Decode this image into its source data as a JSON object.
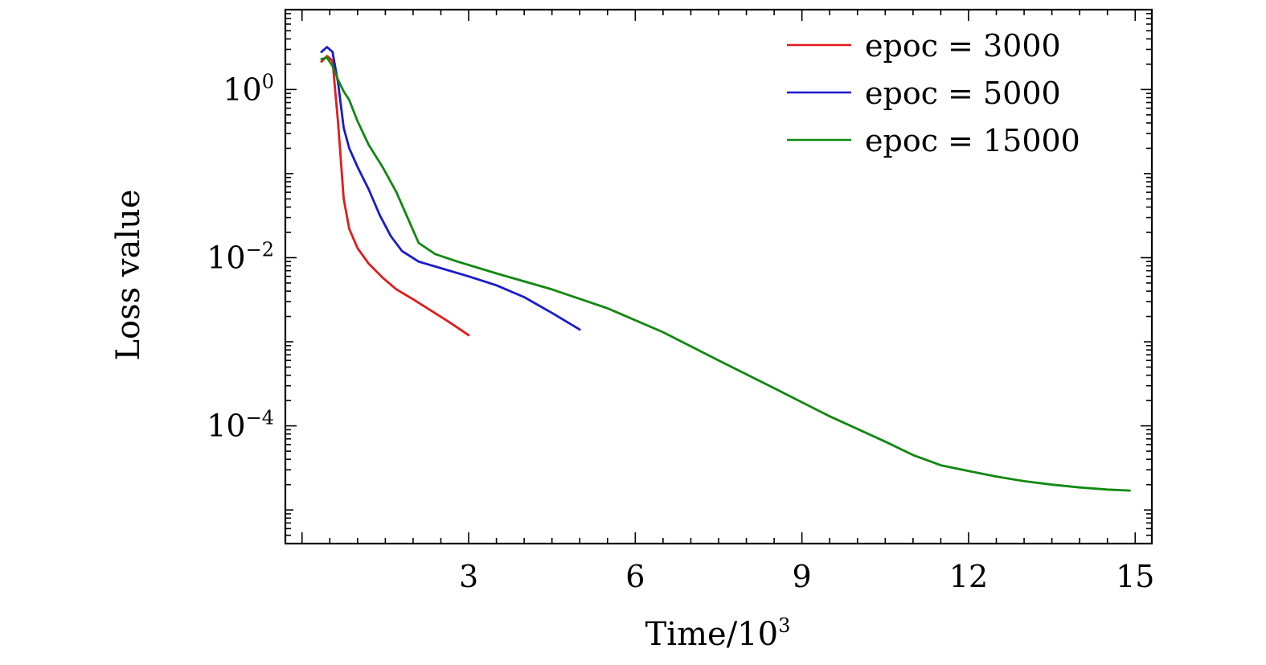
{
  "chart_data": {
    "type": "line",
    "xlabel_base": "Time/10",
    "xlabel_sup": "3",
    "ylabel": "Loss value",
    "xlim": [
      -0.3,
      15.3
    ],
    "x_ticks": [
      {
        "value": 3,
        "label": "3"
      },
      {
        "value": 6,
        "label": "6"
      },
      {
        "value": 9,
        "label": "9"
      },
      {
        "value": 12,
        "label": "12"
      },
      {
        "value": 15,
        "label": "15"
      }
    ],
    "y_scale": "log",
    "ylim_log10": [
      -5.4,
      0.95
    ],
    "y_ticks": [
      {
        "log10": 0,
        "base": "10",
        "exp": "0"
      },
      {
        "log10": -2,
        "base": "10",
        "exp": "−2"
      },
      {
        "log10": -4,
        "base": "10",
        "exp": "−4"
      }
    ],
    "legend_position": "top-right",
    "series": [
      {
        "name": "epoc = 3000",
        "color": "#e41a1c",
        "points": [
          [
            0.35,
            2.15
          ],
          [
            0.45,
            2.5
          ],
          [
            0.55,
            2.2
          ],
          [
            0.65,
            0.4
          ],
          [
            0.75,
            0.05
          ],
          [
            0.85,
            0.022
          ],
          [
            1.0,
            0.013
          ],
          [
            1.2,
            0.0085
          ],
          [
            1.45,
            0.0058
          ],
          [
            1.7,
            0.0042
          ],
          [
            2.0,
            0.0032
          ],
          [
            2.3,
            0.0024
          ],
          [
            2.6,
            0.0018
          ],
          [
            2.85,
            0.0014
          ],
          [
            3.0,
            0.0012
          ]
        ]
      },
      {
        "name": "epoc = 5000",
        "color": "#1a1acd",
        "points": [
          [
            0.35,
            2.8
          ],
          [
            0.45,
            3.2
          ],
          [
            0.55,
            2.8
          ],
          [
            0.65,
            1.2
          ],
          [
            0.75,
            0.35
          ],
          [
            0.85,
            0.2
          ],
          [
            1.0,
            0.12
          ],
          [
            1.2,
            0.065
          ],
          [
            1.4,
            0.032
          ],
          [
            1.6,
            0.018
          ],
          [
            1.8,
            0.012
          ],
          [
            2.1,
            0.009
          ],
          [
            2.5,
            0.0075
          ],
          [
            3.0,
            0.006
          ],
          [
            3.5,
            0.0047
          ],
          [
            4.0,
            0.0034
          ],
          [
            4.5,
            0.0022
          ],
          [
            5.0,
            0.0014
          ]
        ]
      },
      {
        "name": "epoc = 15000",
        "color": "#118811",
        "points": [
          [
            0.35,
            2.3
          ],
          [
            0.45,
            2.4
          ],
          [
            0.55,
            1.9
          ],
          [
            0.65,
            1.3
          ],
          [
            0.75,
            0.95
          ],
          [
            0.85,
            0.75
          ],
          [
            1.0,
            0.42
          ],
          [
            1.2,
            0.22
          ],
          [
            1.45,
            0.12
          ],
          [
            1.7,
            0.06
          ],
          [
            1.9,
            0.03
          ],
          [
            2.1,
            0.015
          ],
          [
            2.4,
            0.011
          ],
          [
            2.8,
            0.009
          ],
          [
            3.5,
            0.0065
          ],
          [
            4.5,
            0.0042
          ],
          [
            5.5,
            0.0025
          ],
          [
            6.5,
            0.0013
          ],
          [
            7.5,
            0.0006
          ],
          [
            8.5,
            0.00028
          ],
          [
            9.5,
            0.00013
          ],
          [
            10.5,
            6.5e-05
          ],
          [
            11.0,
            4.5e-05
          ],
          [
            11.5,
            3.4e-05
          ],
          [
            12.0,
            2.9e-05
          ],
          [
            12.5,
            2.5e-05
          ],
          [
            13.0,
            2.2e-05
          ],
          [
            13.5,
            2e-05
          ],
          [
            14.0,
            1.85e-05
          ],
          [
            14.5,
            1.75e-05
          ],
          [
            14.9,
            1.7e-05
          ]
        ]
      }
    ]
  }
}
